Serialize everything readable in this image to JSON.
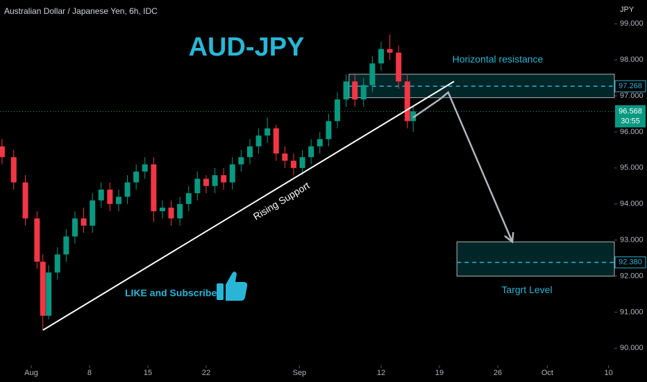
{
  "chart_data": {
    "type": "candlestick",
    "title": "Australian Dollar / Japanese Yen, 6h, IDC",
    "headline": "AUD-JPY",
    "currency": "JPY",
    "up_color": "#089981",
    "down_color": "#f23645",
    "x": [
      -10,
      -6,
      -2,
      2,
      4,
      6,
      9,
      12,
      15,
      18,
      21,
      24,
      27,
      30,
      33,
      36,
      39,
      42,
      45,
      48,
      51,
      54,
      57,
      60,
      63,
      66,
      69,
      72,
      75,
      78,
      81,
      84,
      87,
      90,
      93,
      96,
      99,
      102,
      105,
      108,
      111,
      114,
      117,
      120,
      123,
      126,
      129,
      131
    ],
    "open": [
      95.6,
      95.3,
      94.6,
      93.6,
      92.4,
      90.9,
      92.1,
      92.6,
      93.1,
      93.6,
      93.4,
      94.1,
      94.4,
      94.0,
      94.2,
      94.6,
      94.9,
      95.1,
      93.8,
      93.9,
      93.6,
      94.0,
      94.3,
      94.7,
      94.5,
      94.8,
      94.6,
      95.1,
      95.3,
      95.6,
      95.9,
      96.1,
      95.4,
      95.2,
      95.0,
      95.3,
      95.6,
      95.8,
      96.3,
      96.9,
      97.4,
      96.9,
      97.3,
      97.9,
      98.3,
      98.2,
      97.4,
      96.3
    ],
    "high": [
      95.8,
      95.5,
      94.8,
      93.8,
      92.6,
      92.3,
      92.8,
      93.3,
      93.8,
      93.9,
      94.3,
      94.6,
      94.6,
      94.4,
      94.8,
      95.1,
      95.3,
      95.3,
      94.1,
      94.1,
      94.2,
      94.5,
      94.9,
      94.8,
      95.0,
      95.0,
      95.3,
      95.5,
      95.8,
      96.1,
      96.4,
      96.2,
      95.6,
      95.4,
      95.5,
      95.8,
      96.0,
      96.5,
      97.1,
      97.6,
      97.6,
      97.5,
      98.1,
      98.5,
      98.7,
      98.4,
      97.6,
      96.7
    ],
    "low": [
      95.1,
      94.4,
      93.4,
      92.2,
      90.5,
      90.8,
      91.9,
      92.4,
      92.9,
      93.2,
      93.2,
      93.9,
      93.8,
      93.8,
      94.0,
      94.4,
      94.7,
      93.5,
      93.6,
      93.4,
      93.4,
      93.8,
      94.1,
      94.3,
      94.3,
      94.4,
      94.4,
      94.9,
      95.1,
      95.4,
      95.7,
      95.2,
      95.0,
      94.8,
      94.8,
      95.1,
      95.4,
      95.6,
      96.1,
      96.7,
      96.7,
      96.7,
      97.1,
      97.7,
      98.0,
      97.2,
      96.1,
      96.0
    ],
    "close": [
      95.3,
      94.6,
      93.6,
      92.4,
      90.9,
      92.1,
      92.6,
      93.1,
      93.6,
      93.4,
      94.1,
      94.4,
      94.0,
      94.2,
      94.6,
      94.9,
      95.1,
      93.8,
      93.9,
      93.6,
      94.0,
      94.3,
      94.7,
      94.5,
      94.8,
      94.6,
      95.1,
      95.3,
      95.6,
      95.9,
      96.1,
      95.4,
      95.2,
      95.0,
      95.3,
      95.6,
      95.8,
      96.3,
      96.9,
      97.4,
      96.9,
      97.3,
      97.9,
      98.3,
      98.2,
      97.4,
      96.3,
      96.57
    ],
    "xlim": [
      -10.7,
      200
    ],
    "xticks": [
      {
        "value": 0,
        "label": "Aug"
      },
      {
        "value": 20,
        "label": "8"
      },
      {
        "value": 40,
        "label": "15"
      },
      {
        "value": 60,
        "label": "22"
      },
      {
        "value": 92,
        "label": "Sep"
      },
      {
        "value": 120,
        "label": "12"
      },
      {
        "value": 140,
        "label": "19"
      },
      {
        "value": 160,
        "label": "26"
      },
      {
        "value": 177,
        "label": "Oct"
      },
      {
        "value": 198,
        "label": "10"
      }
    ],
    "ylim": [
      89.64,
      99.66
    ],
    "yticks": [
      {
        "value": 90,
        "label": "90.000"
      },
      {
        "value": 91,
        "label": "91.000"
      },
      {
        "value": 92,
        "label": "92.000"
      },
      {
        "value": 93,
        "label": "93.000"
      },
      {
        "value": 94,
        "label": "94.000"
      },
      {
        "value": 95,
        "label": "95.000"
      },
      {
        "value": 96,
        "label": "96.000"
      },
      {
        "value": 97,
        "label": "97.000"
      },
      {
        "value": 98,
        "label": "98.000"
      },
      {
        "value": 99,
        "label": "99.000"
      }
    ],
    "last_price": {
      "value": 96.568,
      "label": "96.568",
      "countdown": "30:55"
    },
    "zones": [
      {
        "name": "Horizontal resistance",
        "x0": 109,
        "low": 96.95,
        "high": 97.6,
        "level": 97.268,
        "level_label": "97.268",
        "text_x": 160,
        "text_y": 98.0
      },
      {
        "name": "Targrt Level",
        "x0": 146,
        "low": 92.0,
        "high": 92.95,
        "level": 92.38,
        "level_label": "92.380",
        "text_x": 170,
        "text_y": 91.6
      }
    ],
    "support": {
      "name": "Rising Support",
      "x": [
        4,
        145
      ],
      "y": [
        90.5,
        97.4
      ]
    },
    "projection": {
      "x": [
        131,
        140,
        143,
        165
      ],
      "y": [
        96.4,
        96.9,
        97.1,
        92.95
      ]
    },
    "promo": "LIKE and Subscribe"
  }
}
